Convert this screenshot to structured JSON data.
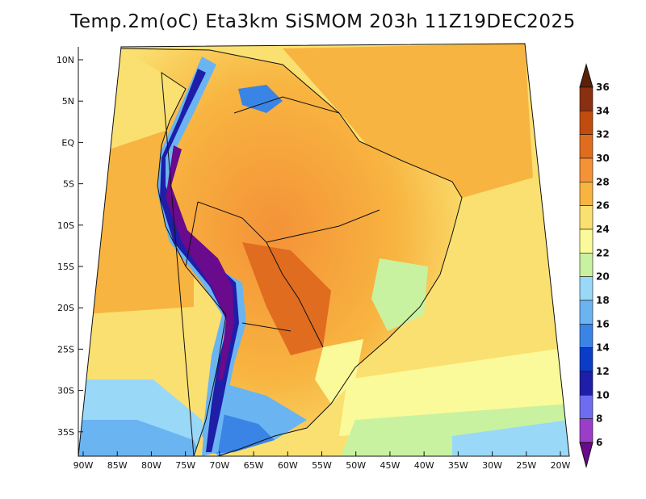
{
  "title": "Temp.2m(oC) Eta3km SiSMOM 203h 11Z19DEC2025",
  "latitude_labels": [
    "10N",
    "5N",
    "EQ",
    "5S",
    "10S",
    "15S",
    "20S",
    "25S",
    "30S",
    "35S"
  ],
  "longitude_labels": [
    "90W",
    "85W",
    "80W",
    "75W",
    "70W",
    "65W",
    "60W",
    "55W",
    "50W",
    "45W",
    "40W",
    "35W",
    "30W",
    "25W",
    "20W"
  ],
  "colorbar": {
    "levels": [
      "6",
      "8",
      "10",
      "12",
      "14",
      "16",
      "18",
      "20",
      "22",
      "24",
      "26",
      "28",
      "30",
      "32",
      "34",
      "36"
    ],
    "colors": [
      "#6a0a8c",
      "#9a3ec8",
      "#6f6cf0",
      "#1e1ea8",
      "#0a3cc8",
      "#3a84e6",
      "#6ab4f2",
      "#9ad8f8",
      "#c8f2a0",
      "#fafa9a",
      "#fae070",
      "#f8b440",
      "#f49238",
      "#e06c20",
      "#c04c10",
      "#8a3010",
      "#5a2008"
    ]
  },
  "colors": {
    "ocean_atlantic": "#fae070",
    "ocean_pacific": "#f8c050",
    "coastline": "#111111"
  }
}
